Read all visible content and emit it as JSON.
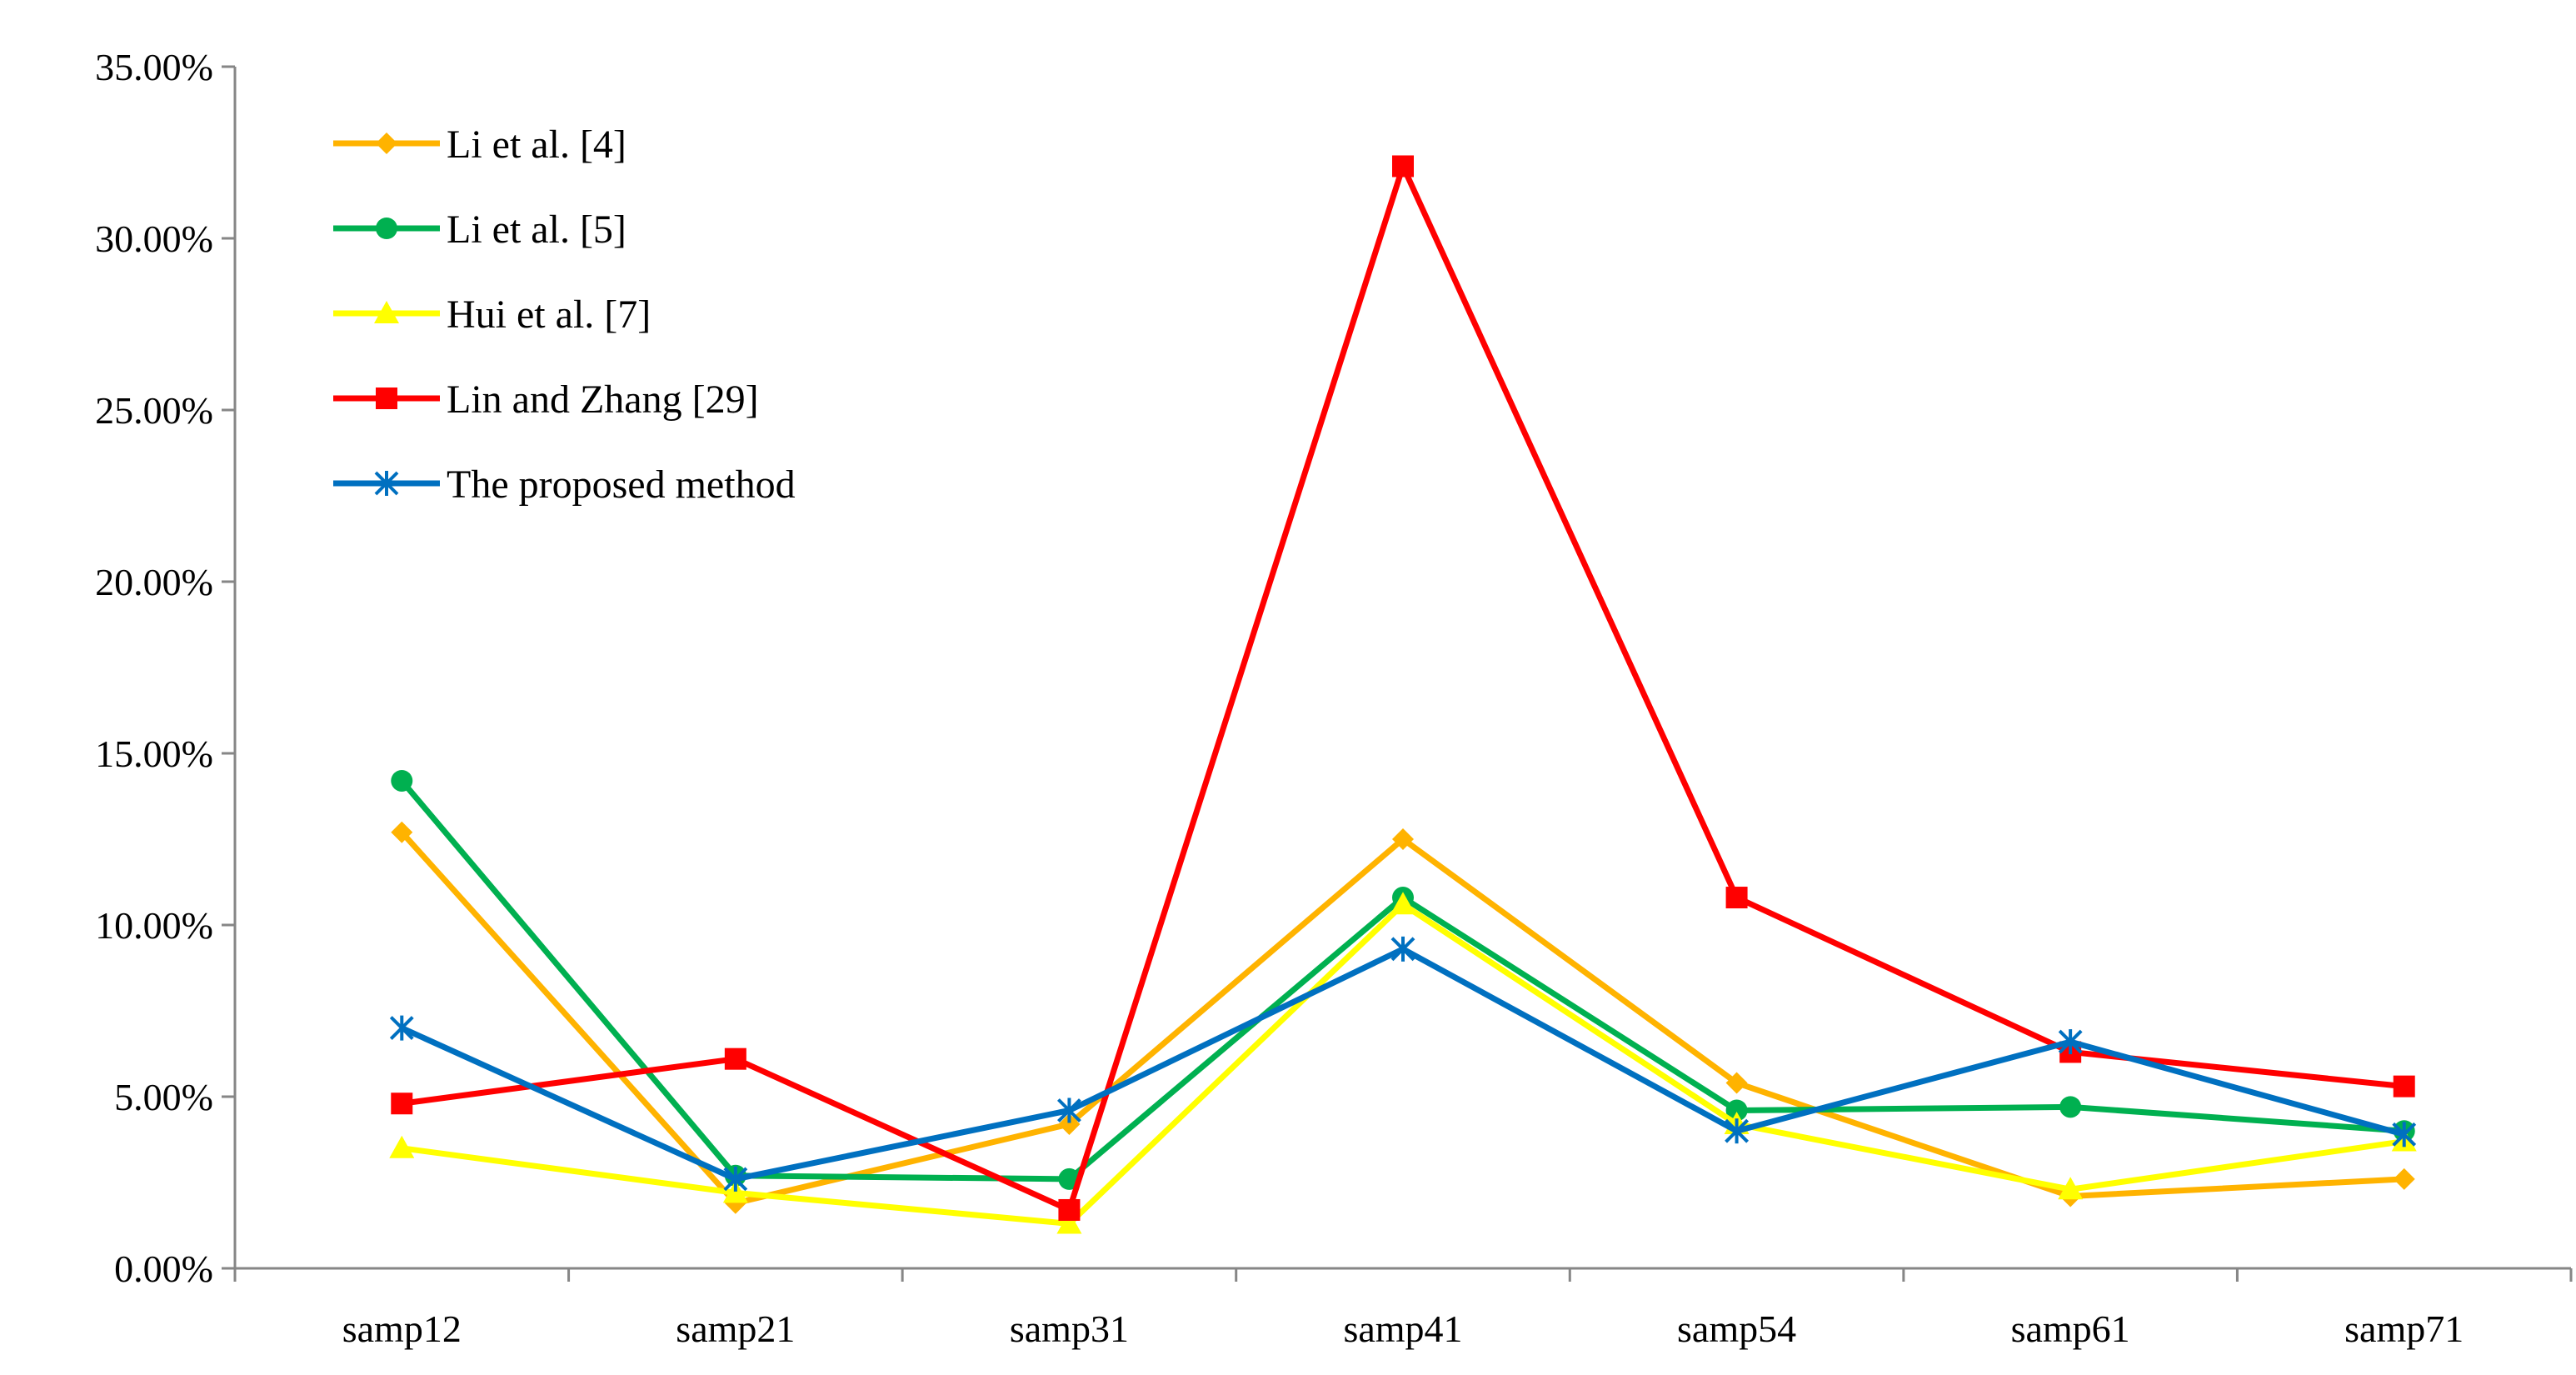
{
  "chart_data": {
    "type": "line",
    "title": "",
    "xlabel": "",
    "ylabel": "",
    "categories": [
      "samp12",
      "samp21",
      "samp31",
      "samp41",
      "samp54",
      "samp61",
      "samp71"
    ],
    "ylim": [
      0,
      35
    ],
    "yticks": [
      0,
      5,
      10,
      15,
      20,
      25,
      30,
      35
    ],
    "ytick_labels": [
      "0.00%",
      "5.00%",
      "10.00%",
      "15.00%",
      "20.00%",
      "25.00%",
      "30.00%",
      "35.00%"
    ],
    "grid": false,
    "legend_position": "top-left",
    "series": [
      {
        "name": "Li et al. [4]",
        "color": "#FFB300",
        "marker": "diamond",
        "values": [
          12.7,
          1.9,
          4.2,
          12.5,
          5.4,
          2.1,
          2.6
        ]
      },
      {
        "name": "Li et al. [5]",
        "color": "#00B050",
        "marker": "circle",
        "values": [
          14.2,
          2.7,
          2.6,
          10.8,
          4.6,
          4.7,
          4.0
        ]
      },
      {
        "name": "Hui et al. [7]",
        "color": "#FFFF00",
        "marker": "triangle",
        "values": [
          3.5,
          2.2,
          1.3,
          10.6,
          4.2,
          2.3,
          3.7
        ]
      },
      {
        "name": "Lin and Zhang [29]",
        "color": "#FF0000",
        "marker": "square",
        "values": [
          4.8,
          6.1,
          1.7,
          32.1,
          10.8,
          6.3,
          5.3
        ]
      },
      {
        "name": "The proposed method",
        "color": "#0070C0",
        "marker": "star",
        "values": [
          7.0,
          2.6,
          4.6,
          9.3,
          4.0,
          6.6,
          3.9
        ]
      }
    ]
  }
}
